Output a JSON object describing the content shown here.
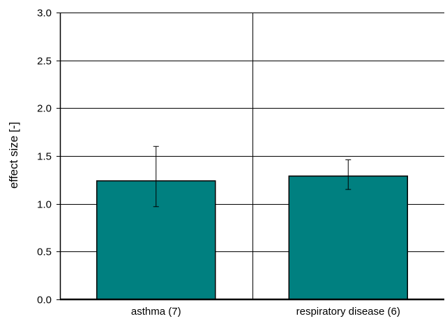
{
  "chart_data": {
    "type": "bar",
    "title": "",
    "xlabel": "",
    "ylabel": "effect size [-]",
    "categories": [
      "asthma (7)",
      "respiratory disease (6)"
    ],
    "values": [
      1.24,
      1.29
    ],
    "error_low": [
      0.97,
      1.15
    ],
    "error_high": [
      1.6,
      1.46
    ],
    "ylim": [
      0,
      3.0
    ],
    "yticks": [
      0.0,
      0.5,
      1.0,
      1.5,
      2.0,
      2.5,
      3.0
    ],
    "ytick_labels": [
      "0.0",
      "0.5",
      "1.0",
      "1.5",
      "2.0",
      "2.5",
      "3.0"
    ],
    "grid": "horizontal",
    "legend": "none",
    "bar_color": "#008080",
    "bar_edge_color": "#000000"
  }
}
